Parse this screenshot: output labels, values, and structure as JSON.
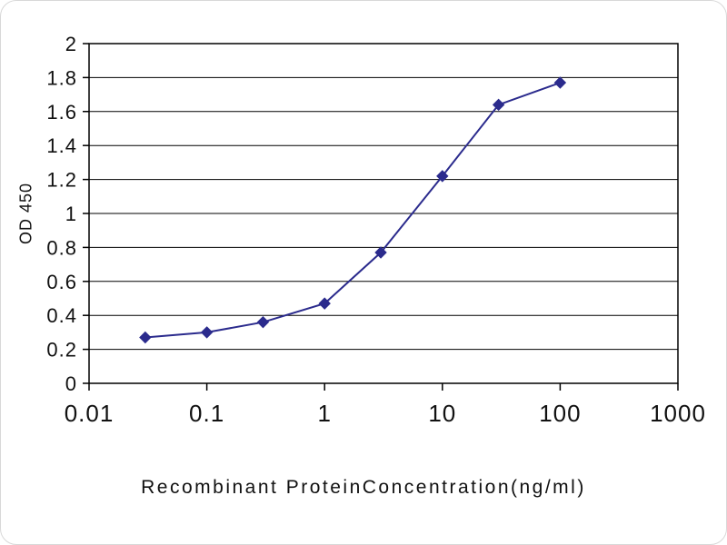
{
  "chart_data": {
    "type": "line",
    "title": "",
    "xlabel": "Recombinant ProteinConcentration(ng/ml)",
    "ylabel": "OD 450",
    "x_scale": "log",
    "xlim": [
      0.01,
      1000
    ],
    "ylim": [
      0,
      2
    ],
    "grid": "horizontal",
    "legend": "none",
    "line_color": "#2b2b8d",
    "marker": "diamond",
    "marker_color": "#2b2b8d",
    "axis_color": "#000000",
    "gridline_color": "#000000",
    "x_ticks": [
      {
        "value": 0.01,
        "label": "0.01"
      },
      {
        "value": 0.1,
        "label": "0.1"
      },
      {
        "value": 1,
        "label": "1"
      },
      {
        "value": 10,
        "label": "10"
      },
      {
        "value": 100,
        "label": "100"
      },
      {
        "value": 1000,
        "label": "1000"
      }
    ],
    "y_ticks": [
      {
        "value": 0,
        "label": "0"
      },
      {
        "value": 0.2,
        "label": "0.2"
      },
      {
        "value": 0.4,
        "label": "0.4"
      },
      {
        "value": 0.6,
        "label": "0.6"
      },
      {
        "value": 0.8,
        "label": "0.8"
      },
      {
        "value": 1,
        "label": "1"
      },
      {
        "value": 1.2,
        "label": "1.2"
      },
      {
        "value": 1.4,
        "label": "1.4"
      },
      {
        "value": 1.6,
        "label": "1.6"
      },
      {
        "value": 1.8,
        "label": "1.8"
      },
      {
        "value": 2,
        "label": "2"
      }
    ],
    "series": [
      {
        "name": "OD 450",
        "x": [
          0.03,
          0.1,
          0.3,
          1,
          3,
          10,
          30,
          100
        ],
        "y": [
          0.27,
          0.3,
          0.36,
          0.47,
          0.77,
          1.22,
          1.64,
          1.77
        ]
      }
    ]
  }
}
